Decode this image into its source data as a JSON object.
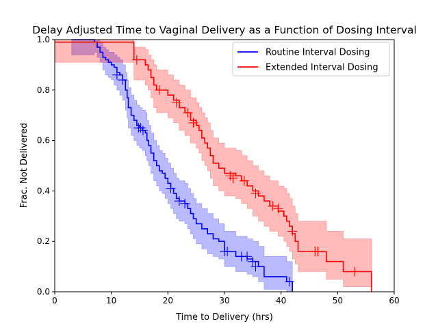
{
  "chart_data": {
    "type": "line",
    "title": "Delay Adjusted Time to Vaginal Delivery as a Function of Dosing Interval",
    "xlabel": "Time to Delivery (hrs)",
    "ylabel": "Frac. Not Delivered",
    "xlim": [
      0,
      60
    ],
    "ylim": [
      0.0,
      1.0
    ],
    "xticks": [
      "0",
      "10",
      "20",
      "30",
      "40",
      "50",
      "60"
    ],
    "yticks": [
      "0.0",
      "0.2",
      "0.4",
      "0.6",
      "0.8",
      "1.0"
    ],
    "grid": false,
    "legend_position": "top-right",
    "series": [
      {
        "name": "Routine Interval Dosing",
        "color": "#0000ff",
        "band_color": "#0000ff",
        "step": [
          [
            3,
            1.0
          ],
          [
            7,
            0.99
          ],
          [
            7.5,
            0.97
          ],
          [
            8,
            0.95
          ],
          [
            8.5,
            0.93
          ],
          [
            9,
            0.92
          ],
          [
            9.5,
            0.91
          ],
          [
            10,
            0.9
          ],
          [
            10.5,
            0.89
          ],
          [
            11,
            0.87
          ],
          [
            11.5,
            0.86
          ],
          [
            12,
            0.84
          ],
          [
            12.5,
            0.8
          ],
          [
            12.8,
            0.77
          ],
          [
            13,
            0.73
          ],
          [
            13.5,
            0.7
          ],
          [
            14,
            0.68
          ],
          [
            14.5,
            0.66
          ],
          [
            15,
            0.65
          ],
          [
            15.5,
            0.64
          ],
          [
            16,
            0.63
          ],
          [
            16.3,
            0.6
          ],
          [
            16.6,
            0.58
          ],
          [
            17,
            0.55
          ],
          [
            17.5,
            0.52
          ],
          [
            18,
            0.5
          ],
          [
            18.5,
            0.48
          ],
          [
            19,
            0.47
          ],
          [
            19.5,
            0.45
          ],
          [
            20,
            0.43
          ],
          [
            20.5,
            0.41
          ],
          [
            21,
            0.39
          ],
          [
            21.5,
            0.37
          ],
          [
            22,
            0.36
          ],
          [
            23,
            0.35
          ],
          [
            23.5,
            0.33
          ],
          [
            24,
            0.31
          ],
          [
            24.5,
            0.29
          ],
          [
            25,
            0.27
          ],
          [
            26,
            0.25
          ],
          [
            27,
            0.23
          ],
          [
            28,
            0.21
          ],
          [
            29,
            0.2
          ],
          [
            30,
            0.16
          ],
          [
            32,
            0.14
          ],
          [
            34,
            0.13
          ],
          [
            35,
            0.12
          ],
          [
            36,
            0.1
          ],
          [
            37,
            0.06
          ],
          [
            41,
            0.04
          ],
          [
            42,
            0.0
          ]
        ],
        "lower": [
          [
            3,
            0.94
          ],
          [
            7,
            0.95
          ],
          [
            7.5,
            0.93
          ],
          [
            8,
            0.91
          ],
          [
            8.5,
            0.88
          ],
          [
            9,
            0.86
          ],
          [
            9.5,
            0.85
          ],
          [
            10,
            0.84
          ],
          [
            10.5,
            0.82
          ],
          [
            11,
            0.8
          ],
          [
            11.5,
            0.78
          ],
          [
            12,
            0.76
          ],
          [
            12.5,
            0.72
          ],
          [
            12.8,
            0.69
          ],
          [
            13,
            0.65
          ],
          [
            13.5,
            0.62
          ],
          [
            14,
            0.6
          ],
          [
            14.5,
            0.58
          ],
          [
            15,
            0.57
          ],
          [
            15.5,
            0.56
          ],
          [
            16,
            0.54
          ],
          [
            16.3,
            0.52
          ],
          [
            16.6,
            0.5
          ],
          [
            17,
            0.47
          ],
          [
            17.5,
            0.44
          ],
          [
            18,
            0.42
          ],
          [
            18.5,
            0.4
          ],
          [
            19,
            0.39
          ],
          [
            19.5,
            0.37
          ],
          [
            20,
            0.35
          ],
          [
            20.5,
            0.33
          ],
          [
            21,
            0.31
          ],
          [
            21.5,
            0.29
          ],
          [
            22,
            0.28
          ],
          [
            23,
            0.27
          ],
          [
            23.5,
            0.25
          ],
          [
            24,
            0.23
          ],
          [
            24.5,
            0.21
          ],
          [
            25,
            0.19
          ],
          [
            26,
            0.17
          ],
          [
            27,
            0.15
          ],
          [
            28,
            0.14
          ],
          [
            29,
            0.13
          ],
          [
            30,
            0.1
          ],
          [
            32,
            0.08
          ],
          [
            34,
            0.07
          ],
          [
            35,
            0.06
          ],
          [
            36,
            0.04
          ],
          [
            37,
            0.01
          ],
          [
            41,
            0.0
          ],
          [
            42,
            0.0
          ]
        ],
        "upper": [
          [
            3,
            1.0
          ],
          [
            7,
            1.0
          ],
          [
            7.5,
            1.0
          ],
          [
            8,
            0.99
          ],
          [
            8.5,
            0.97
          ],
          [
            9,
            0.96
          ],
          [
            9.5,
            0.95
          ],
          [
            10,
            0.95
          ],
          [
            10.5,
            0.94
          ],
          [
            11,
            0.93
          ],
          [
            11.5,
            0.92
          ],
          [
            12,
            0.9
          ],
          [
            12.5,
            0.87
          ],
          [
            12.8,
            0.84
          ],
          [
            13,
            0.81
          ],
          [
            13.5,
            0.78
          ],
          [
            14,
            0.76
          ],
          [
            14.5,
            0.74
          ],
          [
            15,
            0.73
          ],
          [
            15.5,
            0.72
          ],
          [
            16,
            0.71
          ],
          [
            16.3,
            0.68
          ],
          [
            16.6,
            0.66
          ],
          [
            17,
            0.63
          ],
          [
            17.5,
            0.6
          ],
          [
            18,
            0.58
          ],
          [
            18.5,
            0.56
          ],
          [
            19,
            0.55
          ],
          [
            19.5,
            0.53
          ],
          [
            20,
            0.51
          ],
          [
            20.5,
            0.49
          ],
          [
            21,
            0.47
          ],
          [
            21.5,
            0.45
          ],
          [
            22,
            0.44
          ],
          [
            23,
            0.43
          ],
          [
            23.5,
            0.41
          ],
          [
            24,
            0.39
          ],
          [
            24.5,
            0.37
          ],
          [
            25,
            0.35
          ],
          [
            26,
            0.33
          ],
          [
            27,
            0.31
          ],
          [
            28,
            0.29
          ],
          [
            29,
            0.27
          ],
          [
            30,
            0.24
          ],
          [
            32,
            0.22
          ],
          [
            34,
            0.21
          ],
          [
            35,
            0.2
          ],
          [
            36,
            0.18
          ],
          [
            37,
            0.14
          ],
          [
            41,
            0.12
          ],
          [
            42,
            0.08
          ]
        ],
        "censored": [
          [
            11,
            0.86
          ],
          [
            12,
            0.84
          ],
          [
            14.8,
            0.65
          ],
          [
            15.2,
            0.65
          ],
          [
            15.6,
            0.64
          ],
          [
            20.5,
            0.41
          ],
          [
            22,
            0.36
          ],
          [
            23,
            0.35
          ],
          [
            30,
            0.16
          ],
          [
            30.5,
            0.16
          ],
          [
            33,
            0.14
          ],
          [
            34,
            0.14
          ],
          [
            35,
            0.12
          ],
          [
            35.5,
            0.1
          ],
          [
            41.5,
            0.04
          ]
        ]
      },
      {
        "name": "Extended Interval Dosing",
        "color": "#ff0000",
        "band_color": "#ff0000",
        "step": [
          [
            0,
            0.99
          ],
          [
            14,
            0.92
          ],
          [
            16,
            0.9
          ],
          [
            16.5,
            0.88
          ],
          [
            17,
            0.85
          ],
          [
            17.5,
            0.82
          ],
          [
            18,
            0.8
          ],
          [
            20,
            0.78
          ],
          [
            21,
            0.76
          ],
          [
            22,
            0.73
          ],
          [
            23,
            0.71
          ],
          [
            24,
            0.68
          ],
          [
            25,
            0.66
          ],
          [
            25.5,
            0.64
          ],
          [
            26,
            0.61
          ],
          [
            26.5,
            0.59
          ],
          [
            27,
            0.57
          ],
          [
            27.5,
            0.54
          ],
          [
            28,
            0.51
          ],
          [
            29,
            0.49
          ],
          [
            30,
            0.47
          ],
          [
            32,
            0.46
          ],
          [
            33,
            0.44
          ],
          [
            34,
            0.42
          ],
          [
            35,
            0.4
          ],
          [
            36,
            0.38
          ],
          [
            37,
            0.36
          ],
          [
            38,
            0.34
          ],
          [
            39.5,
            0.32
          ],
          [
            40.5,
            0.3
          ],
          [
            41,
            0.28
          ],
          [
            41.5,
            0.26
          ],
          [
            42,
            0.23
          ],
          [
            42.5,
            0.2
          ],
          [
            43,
            0.16
          ],
          [
            48,
            0.12
          ],
          [
            51,
            0.08
          ],
          [
            56,
            0.0
          ]
        ],
        "lower": [
          [
            0,
            0.91
          ],
          [
            14,
            0.84
          ],
          [
            16,
            0.82
          ],
          [
            16.5,
            0.8
          ],
          [
            17,
            0.77
          ],
          [
            17.5,
            0.73
          ],
          [
            18,
            0.71
          ],
          [
            20,
            0.69
          ],
          [
            21,
            0.67
          ],
          [
            22,
            0.64
          ],
          [
            23,
            0.62
          ],
          [
            24,
            0.59
          ],
          [
            25,
            0.57
          ],
          [
            25.5,
            0.55
          ],
          [
            26,
            0.52
          ],
          [
            26.5,
            0.5
          ],
          [
            27,
            0.48
          ],
          [
            27.5,
            0.45
          ],
          [
            28,
            0.42
          ],
          [
            29,
            0.4
          ],
          [
            30,
            0.38
          ],
          [
            32,
            0.37
          ],
          [
            33,
            0.35
          ],
          [
            34,
            0.33
          ],
          [
            35,
            0.3
          ],
          [
            36,
            0.28
          ],
          [
            37,
            0.26
          ],
          [
            38,
            0.24
          ],
          [
            39.5,
            0.22
          ],
          [
            40.5,
            0.2
          ],
          [
            41,
            0.18
          ],
          [
            41.5,
            0.16
          ],
          [
            42,
            0.13
          ],
          [
            42.5,
            0.11
          ],
          [
            43,
            0.08
          ],
          [
            48,
            0.05
          ],
          [
            51,
            0.02
          ],
          [
            56,
            0.0
          ]
        ],
        "upper": [
          [
            0,
            1.0
          ],
          [
            14,
            0.97
          ],
          [
            16,
            0.96
          ],
          [
            16.5,
            0.94
          ],
          [
            17,
            0.92
          ],
          [
            17.5,
            0.9
          ],
          [
            18,
            0.88
          ],
          [
            20,
            0.86
          ],
          [
            21,
            0.84
          ],
          [
            22,
            0.82
          ],
          [
            23,
            0.8
          ],
          [
            24,
            0.77
          ],
          [
            25,
            0.75
          ],
          [
            25.5,
            0.73
          ],
          [
            26,
            0.71
          ],
          [
            26.5,
            0.69
          ],
          [
            27,
            0.67
          ],
          [
            27.5,
            0.64
          ],
          [
            28,
            0.61
          ],
          [
            29,
            0.59
          ],
          [
            30,
            0.57
          ],
          [
            32,
            0.56
          ],
          [
            33,
            0.54
          ],
          [
            34,
            0.52
          ],
          [
            35,
            0.5
          ],
          [
            36,
            0.48
          ],
          [
            37,
            0.46
          ],
          [
            38,
            0.44
          ],
          [
            39.5,
            0.42
          ],
          [
            40.5,
            0.41
          ],
          [
            41,
            0.39
          ],
          [
            41.5,
            0.37
          ],
          [
            42,
            0.34
          ],
          [
            42.5,
            0.31
          ],
          [
            43,
            0.28
          ],
          [
            48,
            0.24
          ],
          [
            51,
            0.21
          ],
          [
            56,
            0.2
          ]
        ],
        "censored": [
          [
            14.5,
            0.92
          ],
          [
            18.5,
            0.8
          ],
          [
            21.5,
            0.75
          ],
          [
            23.5,
            0.71
          ],
          [
            24.5,
            0.67
          ],
          [
            31,
            0.46
          ],
          [
            31.5,
            0.45
          ],
          [
            33.5,
            0.44
          ],
          [
            35.5,
            0.39
          ],
          [
            38.5,
            0.34
          ],
          [
            39.5,
            0.33
          ],
          [
            42,
            0.24
          ],
          [
            46,
            0.16
          ],
          [
            46.5,
            0.16
          ],
          [
            53,
            0.08
          ]
        ]
      }
    ]
  }
}
